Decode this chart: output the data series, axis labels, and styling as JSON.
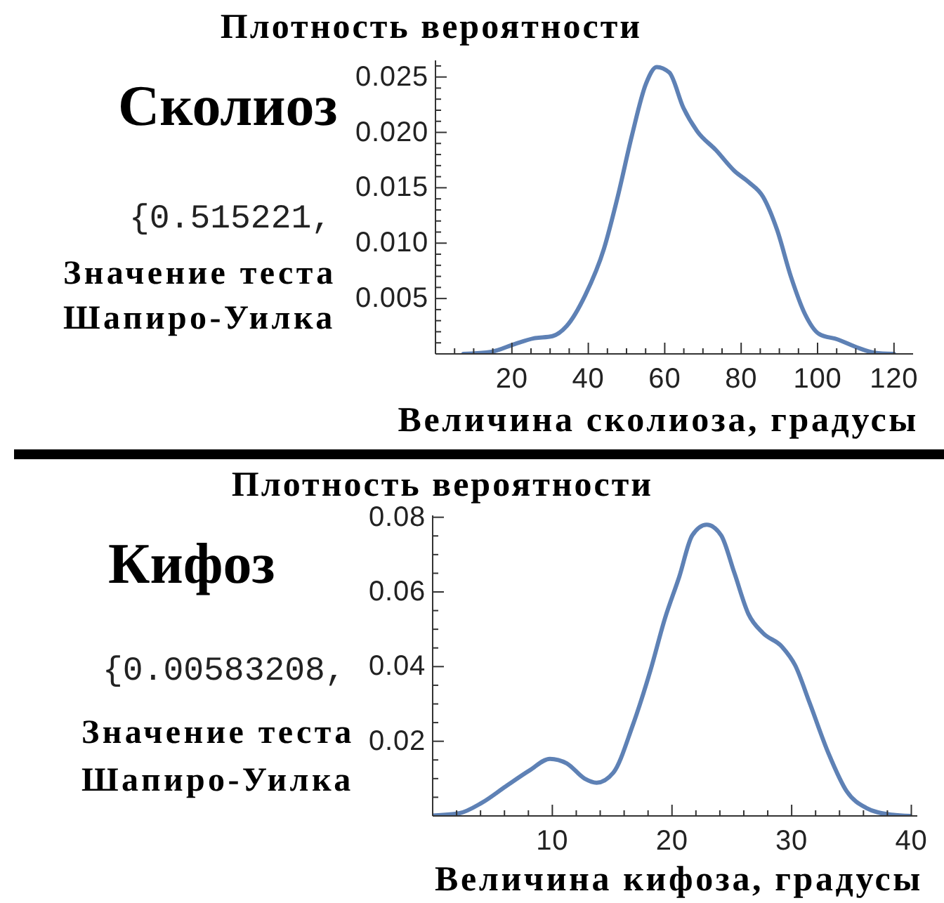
{
  "chart_data": [
    {
      "type": "line",
      "title": "Сколиоз",
      "ylabel": "Плотность вероятности",
      "xlabel": "Величина сколиоза, градусы",
      "annotations": [
        "{0.515221,",
        "Значение теста Шапиро-Уилка"
      ],
      "x": [
        7.3,
        14.7,
        20.8,
        25.7,
        30.6,
        34.3,
        39.2,
        44.1,
        47.7,
        51.4,
        55.1,
        57.9,
        61.2,
        64.9,
        68.5,
        73.4,
        78.3,
        82,
        85.7,
        89.4,
        93,
        96.7,
        100.4,
        105.3,
        110.2,
        115,
        120
      ],
      "values": [
        0,
        0.0002,
        0.0009,
        0.0014,
        0.0016,
        0.0025,
        0.0053,
        0.0095,
        0.0142,
        0.0197,
        0.0244,
        0.0259,
        0.0254,
        0.0222,
        0.0201,
        0.0184,
        0.0165,
        0.0155,
        0.0142,
        0.0112,
        0.007,
        0.0036,
        0.0018,
        0.0013,
        0.0006,
        0.0001,
        0
      ],
      "color": "#5e81b5",
      "xlim": [
        0,
        125
      ],
      "ylim": [
        0,
        0.0265
      ],
      "xticks": [
        {
          "value": 5,
          "label": null
        },
        {
          "value": 10,
          "label": null
        },
        {
          "value": 15,
          "label": null
        },
        20,
        {
          "value": 25,
          "label": null
        },
        {
          "value": 30,
          "label": null
        },
        {
          "value": 35,
          "label": null
        },
        40,
        {
          "value": 45,
          "label": null
        },
        {
          "value": 50,
          "label": null
        },
        {
          "value": 55,
          "label": null
        },
        60,
        {
          "value": 65,
          "label": null
        },
        {
          "value": 70,
          "label": null
        },
        {
          "value": 75,
          "label": null
        },
        80,
        {
          "value": 85,
          "label": null
        },
        {
          "value": 90,
          "label": null
        },
        {
          "value": 95,
          "label": null
        },
        100,
        {
          "value": 105,
          "label": null
        },
        {
          "value": 110,
          "label": null
        },
        {
          "value": 115,
          "label": null
        },
        120
      ],
      "yticks": [
        {
          "value": 0.001,
          "label": null
        },
        {
          "value": 0.002,
          "label": null
        },
        {
          "value": 0.003,
          "label": null
        },
        {
          "value": 0.004,
          "label": null
        },
        0.005,
        {
          "value": 0.006,
          "label": null
        },
        {
          "value": 0.007,
          "label": null
        },
        {
          "value": 0.008,
          "label": null
        },
        {
          "value": 0.009,
          "label": null
        },
        {
          "value": 0.01,
          "label": "0.010"
        },
        {
          "value": 0.011,
          "label": null
        },
        {
          "value": 0.012,
          "label": null
        },
        {
          "value": 0.013,
          "label": null
        },
        {
          "value": 0.014,
          "label": null
        },
        0.015,
        {
          "value": 0.016,
          "label": null
        },
        {
          "value": 0.017,
          "label": null
        },
        {
          "value": 0.018,
          "label": null
        },
        {
          "value": 0.019,
          "label": null
        },
        {
          "value": 0.02,
          "label": "0.020"
        },
        {
          "value": 0.021,
          "label": null
        },
        {
          "value": 0.022,
          "label": null
        },
        {
          "value": 0.023,
          "label": null
        },
        {
          "value": 0.024,
          "label": null
        },
        0.025,
        {
          "value": 0.026,
          "label": null
        }
      ]
    },
    {
      "type": "line",
      "title": "Кифоз",
      "ylabel": "Плотность вероятности",
      "xlabel": "Величина кифоза, градусы",
      "annotations": [
        "{0.00583208,",
        "Значение теста Шапиро-Уилка"
      ],
      "x": [
        0,
        2.2,
        4.1,
        6.1,
        8.1,
        9.8,
        11.2,
        12.7,
        13.7,
        15.1,
        16.7,
        18.2,
        19.4,
        20.6,
        21.7,
        22.9,
        24.1,
        25.2,
        26.4,
        27.6,
        29.2,
        30.3,
        31.5,
        33.1,
        34.6,
        36.2,
        38.2,
        39.9
      ],
      "values": [
        0.0001,
        0.0007,
        0.0035,
        0.0079,
        0.0122,
        0.0153,
        0.0141,
        0.01,
        0.0089,
        0.0116,
        0.0241,
        0.039,
        0.0528,
        0.064,
        0.0752,
        0.078,
        0.0752,
        0.0652,
        0.054,
        0.049,
        0.0453,
        0.0403,
        0.0303,
        0.0166,
        0.0066,
        0.0022,
        0.0004,
        0
      ],
      "color": "#5e81b5",
      "xlim": [
        0,
        40.5
      ],
      "ylim": [
        0,
        0.0805
      ],
      "xticks": [
        {
          "value": 2,
          "label": null
        },
        {
          "value": 4,
          "label": null
        },
        {
          "value": 6,
          "label": null
        },
        {
          "value": 8,
          "label": null
        },
        10,
        {
          "value": 12,
          "label": null
        },
        {
          "value": 14,
          "label": null
        },
        {
          "value": 16,
          "label": null
        },
        {
          "value": 18,
          "label": null
        },
        20,
        {
          "value": 22,
          "label": null
        },
        {
          "value": 24,
          "label": null
        },
        {
          "value": 26,
          "label": null
        },
        {
          "value": 28,
          "label": null
        },
        30,
        {
          "value": 32,
          "label": null
        },
        {
          "value": 34,
          "label": null
        },
        {
          "value": 36,
          "label": null
        },
        {
          "value": 38,
          "label": null
        },
        40
      ],
      "yticks": [
        {
          "value": 0.005,
          "label": null
        },
        {
          "value": 0.01,
          "label": null
        },
        {
          "value": 0.015,
          "label": null
        },
        0.02,
        {
          "value": 0.025,
          "label": null
        },
        {
          "value": 0.03,
          "label": null
        },
        {
          "value": 0.035,
          "label": null
        },
        0.04,
        {
          "value": 0.045,
          "label": null
        },
        {
          "value": 0.05,
          "label": null
        },
        {
          "value": 0.055,
          "label": null
        },
        0.06,
        {
          "value": 0.065,
          "label": null
        },
        {
          "value": 0.07,
          "label": null
        },
        {
          "value": 0.075,
          "label": null
        },
        0.08
      ]
    }
  ]
}
